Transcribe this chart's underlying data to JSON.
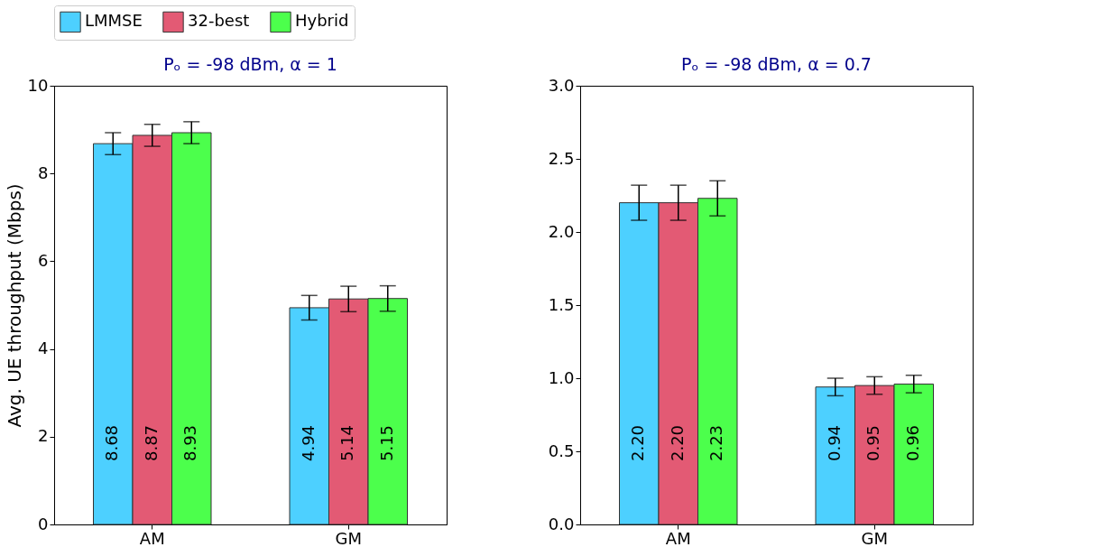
{
  "chart_data": [
    {
      "type": "bar",
      "title": "Pₒ = -98 dBm, α = 1",
      "ylabel": "Avg. UE throughput (Mbps)",
      "categories": [
        "AM",
        "GM"
      ],
      "ylim": [
        0,
        10
      ],
      "yticks": [
        0,
        2,
        4,
        6,
        8,
        10
      ],
      "legend": "top",
      "grid": false,
      "series": [
        {
          "name": "LMMSE",
          "color": "#4dd0ff",
          "values": [
            8.68,
            4.94
          ],
          "errors": [
            0.25,
            0.28
          ],
          "value_labels": [
            "8.68",
            "4.94"
          ]
        },
        {
          "name": "32-best",
          "color": "#e35a74",
          "values": [
            8.87,
            5.14
          ],
          "errors": [
            0.25,
            0.29
          ],
          "value_labels": [
            "8.87",
            "5.14"
          ]
        },
        {
          "name": "Hybrid",
          "color": "#4cff4c",
          "values": [
            8.93,
            5.15
          ],
          "errors": [
            0.25,
            0.29
          ],
          "value_labels": [
            "8.93",
            "5.15"
          ]
        }
      ]
    },
    {
      "type": "bar",
      "title": "Pₒ = -98 dBm, α = 0.7",
      "categories": [
        "AM",
        "GM"
      ],
      "ylim": [
        0,
        3
      ],
      "yticks": [
        {
          "value": 0,
          "label": "0.0"
        },
        0.5,
        {
          "value": 1,
          "label": "1.0"
        },
        1.5,
        {
          "value": 2,
          "label": "2.0"
        },
        2.5,
        {
          "value": 3,
          "label": "3.0"
        }
      ],
      "legend": "top",
      "grid": false,
      "series": [
        {
          "name": "LMMSE",
          "color": "#4dd0ff",
          "values": [
            2.2,
            0.94
          ],
          "errors": [
            0.12,
            0.06
          ],
          "value_labels": [
            "2.20",
            "0.94"
          ]
        },
        {
          "name": "32-best",
          "color": "#e35a74",
          "values": [
            2.2,
            0.95
          ],
          "errors": [
            0.12,
            0.06
          ],
          "value_labels": [
            "2.20",
            "0.95"
          ]
        },
        {
          "name": "Hybrid",
          "color": "#4cff4c",
          "values": [
            2.23,
            0.96
          ],
          "errors": [
            0.12,
            0.06
          ],
          "value_labels": [
            "2.23",
            "0.96"
          ]
        }
      ]
    }
  ]
}
